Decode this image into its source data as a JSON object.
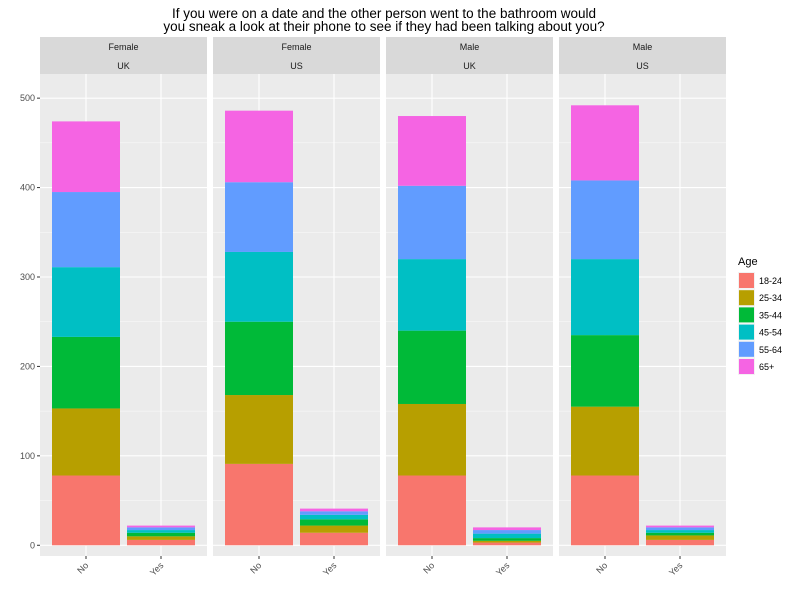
{
  "chart_data": {
    "type": "bar",
    "stacked": true,
    "title_lines": [
      "If you were on a date and the other person went to the bathroom would",
      "you sneak a look at their phone to see if they had been talking about you?"
    ],
    "xlabel": "",
    "ylabel": "",
    "ylim": [
      -12,
      527
    ],
    "yticks": [
      0,
      100,
      200,
      300,
      400,
      500
    ],
    "grid": true,
    "legend": {
      "title": "Age",
      "position": "right",
      "entries": [
        "18-24",
        "25-34",
        "35-44",
        "45-54",
        "55-64",
        "65+"
      ]
    },
    "series_colors": {
      "18-24": "#F8766D",
      "25-34": "#B79F00",
      "35-44": "#00BA38",
      "45-54": "#00BFC4",
      "55-64": "#619CFF",
      "65+": "#F564E3"
    },
    "categories": [
      "No",
      "Yes"
    ],
    "panels": [
      {
        "strip": [
          "Female",
          "UK"
        ],
        "bars": [
          {
            "category": "No",
            "values": {
              "18-24": 78,
              "25-34": 75,
              "35-44": 80,
              "45-54": 78,
              "55-64": 84,
              "65+": 79
            }
          },
          {
            "category": "Yes",
            "values": {
              "18-24": 6,
              "25-34": 4,
              "35-44": 4,
              "45-54": 3,
              "55-64": 3,
              "65+": 2
            }
          }
        ]
      },
      {
        "strip": [
          "Female",
          "US"
        ],
        "bars": [
          {
            "category": "No",
            "values": {
              "18-24": 91,
              "25-34": 77,
              "35-44": 82,
              "45-54": 78,
              "55-64": 78,
              "65+": 80
            }
          },
          {
            "category": "Yes",
            "values": {
              "18-24": 14,
              "25-34": 8,
              "35-44": 7,
              "45-54": 5,
              "55-64": 4,
              "65+": 3
            }
          }
        ]
      },
      {
        "strip": [
          "Male",
          "UK"
        ],
        "bars": [
          {
            "category": "No",
            "values": {
              "18-24": 78,
              "25-34": 80,
              "35-44": 82,
              "45-54": 80,
              "55-64": 82,
              "65+": 78
            }
          },
          {
            "category": "Yes",
            "values": {
              "18-24": 3,
              "25-34": 2,
              "35-44": 3,
              "45-54": 5,
              "55-64": 4,
              "65+": 3
            }
          }
        ]
      },
      {
        "strip": [
          "Male",
          "US"
        ],
        "bars": [
          {
            "category": "No",
            "values": {
              "18-24": 78,
              "25-34": 77,
              "35-44": 80,
              "45-54": 85,
              "55-64": 88,
              "65+": 84
            }
          },
          {
            "category": "Yes",
            "values": {
              "18-24": 6,
              "25-34": 5,
              "35-44": 3,
              "45-54": 3,
              "55-64": 3,
              "65+": 2
            }
          }
        ]
      }
    ]
  }
}
